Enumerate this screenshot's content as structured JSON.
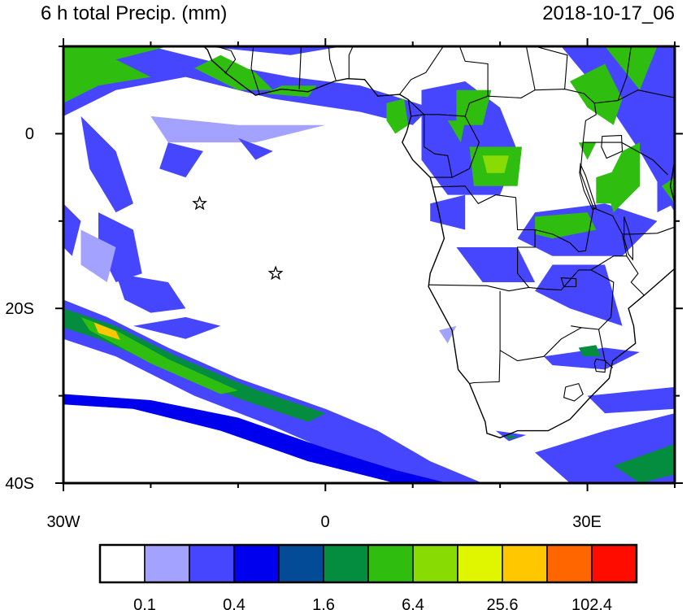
{
  "header": {
    "title": "6 h total Precip. (mm)",
    "datetime": "2018-10-17_06"
  },
  "map": {
    "projection": "cylindrical equidistant",
    "lon_range": [
      -30,
      40
    ],
    "lat_range": [
      -40,
      10
    ],
    "x_tick_labels": [
      {
        "lon": -30,
        "label": "30W"
      },
      {
        "lon": 0,
        "label": "0"
      },
      {
        "lon": 30,
        "label": "30E"
      }
    ],
    "y_tick_labels": [
      {
        "lat": 0,
        "label": "0"
      },
      {
        "lat": -20,
        "label": "20S"
      },
      {
        "lat": -40,
        "label": "40S"
      }
    ],
    "markers": [
      {
        "name": "star",
        "lon": -14.4,
        "lat": -8.0
      },
      {
        "name": "star",
        "lon": -5.7,
        "lat": -16.0
      }
    ]
  },
  "colorbar": {
    "colors": [
      "#ffffff",
      "#a3a3ff",
      "#4646ff",
      "#0000ee",
      "#034b97",
      "#048c3f",
      "#2fbd10",
      "#88dc03",
      "#e0f500",
      "#ffc700",
      "#ff6600",
      "#ff0c00"
    ],
    "labels": [
      "0.1",
      "0.4",
      "1.6",
      "6.4",
      "25.6",
      "102.4"
    ]
  }
}
